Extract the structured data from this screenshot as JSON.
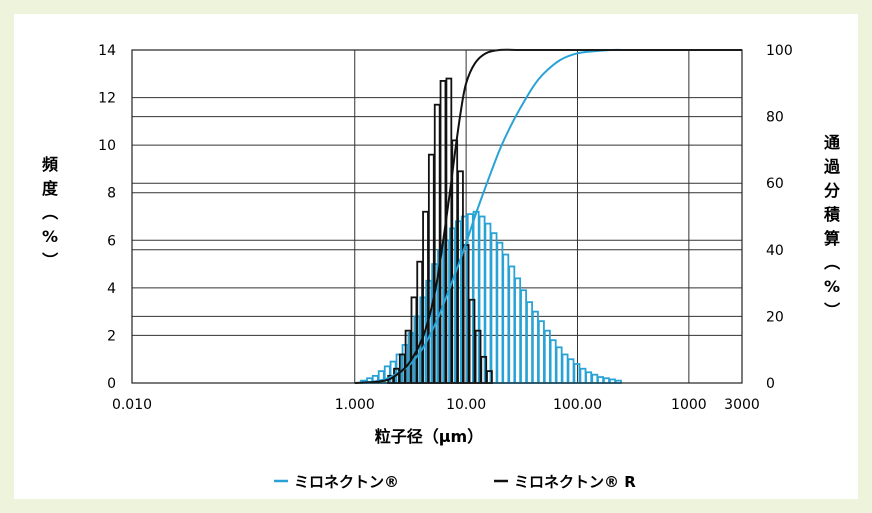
{
  "chart_data": {
    "type": "bar",
    "xlabel": "粒子径（μm）",
    "ylabel_left": "頻度（%）",
    "ylabel_right": "通過分積算（%）",
    "x_scale": "log",
    "x_range": [
      0.01,
      3000
    ],
    "x_ticks": [
      {
        "value": 0.01,
        "label": "0.010"
      },
      {
        "value": 1,
        "label": "1.000"
      },
      {
        "value": 10,
        "label": "10.00"
      },
      {
        "value": 100,
        "label": "100.00"
      },
      {
        "value": 1000,
        "label": "1000"
      },
      {
        "value": 3000,
        "label": "3000"
      }
    ],
    "y_left_range": [
      0,
      14
    ],
    "y_left_ticks": [
      {
        "value": 0,
        "label": "0"
      },
      {
        "value": 2,
        "label": "2"
      },
      {
        "value": 4,
        "label": "4"
      },
      {
        "value": 6,
        "label": "6"
      },
      {
        "value": 8,
        "label": "8"
      },
      {
        "value": 10,
        "label": "10"
      },
      {
        "value": 12,
        "label": "12"
      },
      {
        "value": 14,
        "label": "14"
      }
    ],
    "y_right_range": [
      0,
      100
    ],
    "y_right_ticks": [
      {
        "value": 0,
        "label": "0"
      },
      {
        "value": 20,
        "label": "20"
      },
      {
        "value": 40,
        "label": "40"
      },
      {
        "value": 60,
        "label": "60"
      },
      {
        "value": 80,
        "label": "80"
      },
      {
        "value": 100,
        "label": "100"
      }
    ],
    "grid": true,
    "legend_position": "bottom",
    "series": [
      {
        "name": "ミロネクトン®",
        "color": "#29a3d6",
        "histogram": {
          "x": [
            1.2,
            1.36,
            1.53,
            1.73,
            1.96,
            2.21,
            2.5,
            2.83,
            3.2,
            3.62,
            4.09,
            4.62,
            5.22,
            5.9,
            6.67,
            7.54,
            8.52,
            9.63,
            10.9,
            12.3,
            13.9,
            15.7,
            17.8,
            20.1,
            22.7,
            25.7,
            29.0,
            32.8,
            37.1,
            41.9,
            47.4,
            53.6,
            60.5,
            68.4,
            77.3,
            87.4,
            98.8,
            112,
            126,
            143,
            161,
            182,
            206,
            233
          ],
          "values": [
            0.1,
            0.2,
            0.3,
            0.5,
            0.7,
            0.9,
            1.2,
            1.6,
            2.1,
            2.8,
            3.6,
            4.3,
            5.0,
            5.6,
            6.0,
            6.5,
            6.8,
            7.0,
            7.1,
            7.2,
            7.0,
            6.7,
            6.3,
            5.9,
            5.4,
            4.9,
            4.4,
            3.9,
            3.4,
            3.0,
            2.6,
            2.2,
            1.8,
            1.5,
            1.2,
            1.0,
            0.8,
            0.6,
            0.45,
            0.35,
            0.25,
            0.2,
            0.15,
            0.1
          ]
        },
        "cumulative": {
          "x": [
            1.0,
            1.5,
            2.0,
            3.0,
            4.0,
            5.0,
            6.0,
            8.0,
            10.0,
            12.0,
            15.0,
            20.0,
            25.0,
            30.0,
            40.0,
            50.0,
            70.0,
            100.0,
            150.0,
            200.0,
            300.0,
            500.0,
            1000.0,
            3000.0
          ],
          "y": [
            0,
            0.5,
            1.5,
            5,
            10,
            16,
            22,
            33,
            42,
            50,
            59,
            70,
            77,
            82,
            89,
            93,
            97,
            99,
            99.7,
            100,
            100,
            100,
            100,
            100
          ]
        }
      },
      {
        "name": "ミロネクトン® R",
        "color": "#111111",
        "histogram": {
          "x": [
            2.1,
            2.37,
            2.67,
            3.01,
            3.4,
            3.83,
            4.32,
            4.87,
            5.5,
            6.2,
            7.0,
            7.9,
            8.9,
            10.0,
            11.3,
            12.8,
            14.4,
            16.2
          ],
          "values": [
            0.3,
            0.6,
            1.2,
            2.2,
            3.6,
            5.1,
            7.2,
            9.6,
            11.7,
            12.7,
            12.8,
            10.2,
            8.9,
            5.8,
            3.5,
            2.2,
            1.1,
            0.5
          ]
        },
        "cumulative": {
          "x": [
            1.0,
            1.5,
            2.0,
            2.5,
            3.0,
            3.5,
            4.0,
            4.5,
            5.0,
            5.5,
            6.0,
            7.0,
            8.0,
            9.0,
            10.0,
            12.0,
            15.0,
            20.0,
            30.0,
            50.0,
            100.0,
            200.0,
            500.0,
            1000.0,
            3000.0
          ],
          "y": [
            0,
            0.3,
            1,
            3,
            5.5,
            9,
            13,
            18,
            24,
            31,
            39,
            55,
            70,
            82,
            90,
            96,
            99,
            100,
            100,
            100,
            100,
            100,
            100,
            100,
            100
          ]
        }
      }
    ]
  }
}
